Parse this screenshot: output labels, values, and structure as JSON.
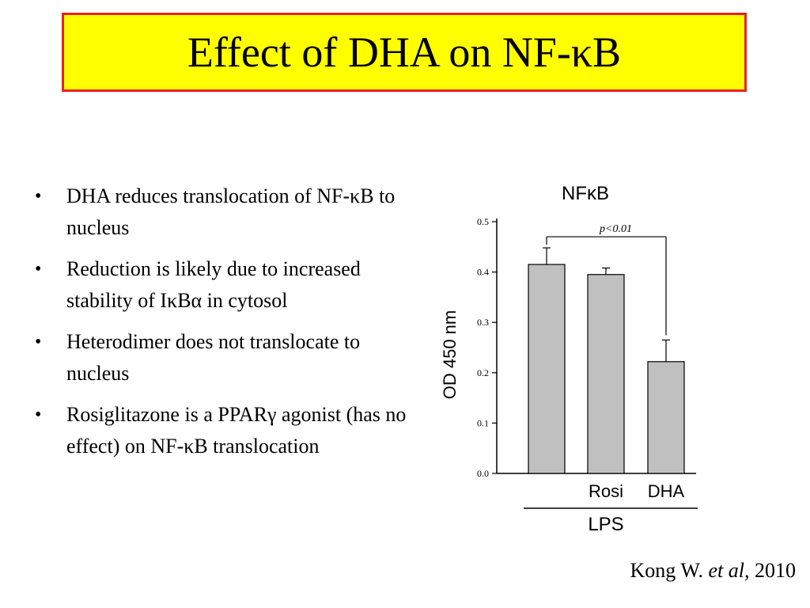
{
  "slide": {
    "title": "Effect of DHA on NF-κB",
    "bullets": [
      "DHA reduces translocation of NF-κB to nucleus",
      "Reduction is likely due to increased stability of IκBα in cytosol",
      "Heterodimer does not translocate to nucleus",
      "Rosiglitazone is a PPARγ agonist (has no effect) on NF-κB translocation"
    ],
    "citation": {
      "author": "Kong W. ",
      "etal": "et al",
      "year": ", 2010"
    }
  },
  "chart_data": {
    "type": "bar",
    "title": "NFκB",
    "ylabel": "OD 450 nm",
    "xlabel": "",
    "categories": [
      "",
      "Rosi",
      "DHA"
    ],
    "group_label": "LPS",
    "values": [
      0.415,
      0.395,
      0.222
    ],
    "errors": [
      0.033,
      0.013,
      0.043
    ],
    "ylim": [
      0,
      0.5
    ],
    "yticks": [
      "0.0",
      "0.1",
      "0.2",
      "0.3",
      "0.4",
      "0.5"
    ],
    "bar_color": "#c0c0c0",
    "annotation": {
      "text": "p<0.01",
      "from": 0,
      "to": 2
    },
    "grid": false
  }
}
